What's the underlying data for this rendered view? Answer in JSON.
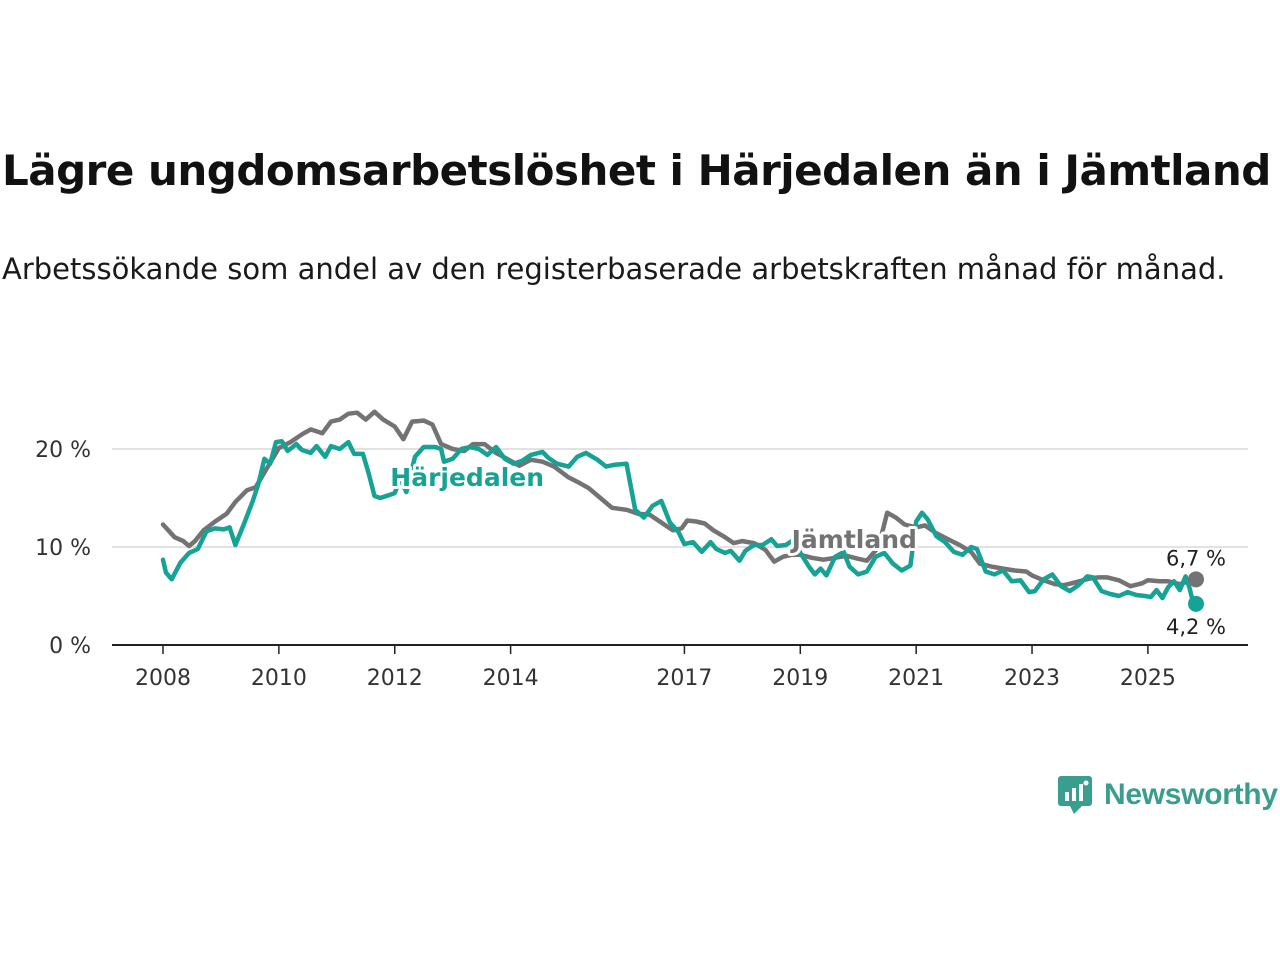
{
  "title": "Lägre ungdomsarbetslöshet i Härjedalen än i Jämtland",
  "subtitle": "Arbetssökande som andel av den registerbaserade arbetskraften månad för månad.",
  "brand": {
    "name": "Newsworthy",
    "icon": "newsworthy-logo-icon",
    "color": "#3a9e8f"
  },
  "colors": {
    "jamtland": "#737373",
    "harjedalen": "#16a295",
    "grid": "#d9d9d9",
    "axis": "#222222"
  },
  "chart_data": {
    "type": "line",
    "title": "Lägre ungdomsarbetslöshet i Härjedalen än i Jämtland",
    "xlabel": "",
    "ylabel": "",
    "x_range": [
      2008.0,
      2025.83
    ],
    "ylim": [
      0,
      24
    ],
    "y_ticks": [
      0,
      10,
      20
    ],
    "y_tick_labels": [
      "0 %",
      "10 %",
      "20 %"
    ],
    "x_ticks": [
      2008,
      2010,
      2012,
      2014,
      2017,
      2019,
      2021,
      2023,
      2025
    ],
    "x_tick_labels": [
      "2008",
      "2010",
      "2012",
      "2014",
      "2017",
      "2019",
      "2021",
      "2023",
      "2025"
    ],
    "grid": true,
    "series": [
      {
        "name": "Jämtland",
        "label": "Jämtland",
        "end_label": "6,7 %",
        "end_value": 6.7,
        "points": [
          [
            2008.0,
            12.3
          ],
          [
            2008.2,
            11.0
          ],
          [
            2008.35,
            10.6
          ],
          [
            2008.45,
            10.1
          ],
          [
            2008.55,
            10.6
          ],
          [
            2008.7,
            11.7
          ],
          [
            2008.9,
            12.6
          ],
          [
            2009.1,
            13.4
          ],
          [
            2009.25,
            14.6
          ],
          [
            2009.45,
            15.8
          ],
          [
            2009.6,
            16.1
          ],
          [
            2009.8,
            18.1
          ],
          [
            2010.0,
            20.1
          ],
          [
            2010.2,
            20.7
          ],
          [
            2010.4,
            21.5
          ],
          [
            2010.55,
            22.0
          ],
          [
            2010.75,
            21.6
          ],
          [
            2010.9,
            22.8
          ],
          [
            2011.05,
            23.0
          ],
          [
            2011.2,
            23.6
          ],
          [
            2011.35,
            23.7
          ],
          [
            2011.5,
            23.0
          ],
          [
            2011.65,
            23.8
          ],
          [
            2011.8,
            23.0
          ],
          [
            2012.0,
            22.3
          ],
          [
            2012.15,
            21.0
          ],
          [
            2012.3,
            22.8
          ],
          [
            2012.5,
            22.9
          ],
          [
            2012.65,
            22.5
          ],
          [
            2012.8,
            20.5
          ],
          [
            2013.0,
            20.0
          ],
          [
            2013.2,
            19.8
          ],
          [
            2013.35,
            20.5
          ],
          [
            2013.55,
            20.5
          ],
          [
            2013.75,
            19.6
          ],
          [
            2014.0,
            18.8
          ],
          [
            2014.15,
            18.3
          ],
          [
            2014.35,
            18.9
          ],
          [
            2014.55,
            18.7
          ],
          [
            2014.75,
            18.2
          ],
          [
            2015.0,
            17.1
          ],
          [
            2015.2,
            16.5
          ],
          [
            2015.35,
            16.0
          ],
          [
            2015.55,
            15.0
          ],
          [
            2015.75,
            14.0
          ],
          [
            2016.0,
            13.8
          ],
          [
            2016.2,
            13.4
          ],
          [
            2016.4,
            13.3
          ],
          [
            2016.6,
            12.5
          ],
          [
            2016.8,
            11.7
          ],
          [
            2016.95,
            11.9
          ],
          [
            2017.05,
            12.7
          ],
          [
            2017.2,
            12.6
          ],
          [
            2017.35,
            12.4
          ],
          [
            2017.5,
            11.7
          ],
          [
            2017.7,
            11.0
          ],
          [
            2017.85,
            10.4
          ],
          [
            2018.0,
            10.6
          ],
          [
            2018.2,
            10.4
          ],
          [
            2018.4,
            9.7
          ],
          [
            2018.55,
            8.5
          ],
          [
            2018.7,
            9.0
          ],
          [
            2018.85,
            9.2
          ],
          [
            2019.0,
            9.2
          ],
          [
            2019.2,
            8.9
          ],
          [
            2019.4,
            8.7
          ],
          [
            2019.6,
            8.9
          ],
          [
            2019.8,
            9.1
          ],
          [
            2020.0,
            8.8
          ],
          [
            2020.15,
            8.6
          ],
          [
            2020.35,
            10.0
          ],
          [
            2020.5,
            13.5
          ],
          [
            2020.65,
            13.0
          ],
          [
            2020.8,
            12.3
          ],
          [
            2021.0,
            12.0
          ],
          [
            2021.15,
            12.2
          ],
          [
            2021.35,
            11.4
          ],
          [
            2021.55,
            10.8
          ],
          [
            2021.75,
            10.2
          ],
          [
            2021.95,
            9.5
          ],
          [
            2022.1,
            8.3
          ],
          [
            2022.3,
            8.0
          ],
          [
            2022.5,
            7.8
          ],
          [
            2022.7,
            7.6
          ],
          [
            2022.9,
            7.5
          ],
          [
            2023.0,
            7.1
          ],
          [
            2023.2,
            6.6
          ],
          [
            2023.4,
            6.2
          ],
          [
            2023.55,
            6.1
          ],
          [
            2023.75,
            6.4
          ],
          [
            2024.0,
            6.8
          ],
          [
            2024.15,
            6.9
          ],
          [
            2024.3,
            6.9
          ],
          [
            2024.5,
            6.6
          ],
          [
            2024.7,
            6.0
          ],
          [
            2024.9,
            6.3
          ],
          [
            2025.0,
            6.6
          ],
          [
            2025.2,
            6.5
          ],
          [
            2025.35,
            6.5
          ],
          [
            2025.55,
            6.2
          ],
          [
            2025.7,
            6.5
          ],
          [
            2025.83,
            6.7
          ]
        ]
      },
      {
        "name": "Härjedalen",
        "label": "Härjedalen",
        "end_label": "4,2 %",
        "end_value": 4.2,
        "points": [
          [
            2008.0,
            8.7
          ],
          [
            2008.05,
            7.4
          ],
          [
            2008.15,
            6.7
          ],
          [
            2008.3,
            8.4
          ],
          [
            2008.45,
            9.4
          ],
          [
            2008.6,
            9.8
          ],
          [
            2008.75,
            11.6
          ],
          [
            2008.9,
            11.9
          ],
          [
            2009.05,
            11.8
          ],
          [
            2009.15,
            12.0
          ],
          [
            2009.25,
            10.2
          ],
          [
            2009.4,
            12.4
          ],
          [
            2009.55,
            14.7
          ],
          [
            2009.65,
            16.5
          ],
          [
            2009.75,
            19.0
          ],
          [
            2009.85,
            18.5
          ],
          [
            2009.95,
            20.7
          ],
          [
            2010.05,
            20.8
          ],
          [
            2010.15,
            19.8
          ],
          [
            2010.3,
            20.5
          ],
          [
            2010.4,
            19.9
          ],
          [
            2010.55,
            19.6
          ],
          [
            2010.65,
            20.3
          ],
          [
            2010.8,
            19.2
          ],
          [
            2010.9,
            20.3
          ],
          [
            2011.05,
            20.0
          ],
          [
            2011.2,
            20.7
          ],
          [
            2011.3,
            19.5
          ],
          [
            2011.45,
            19.5
          ],
          [
            2011.55,
            17.5
          ],
          [
            2011.65,
            15.2
          ],
          [
            2011.75,
            15.0
          ],
          [
            2011.9,
            15.3
          ],
          [
            2012.0,
            15.5
          ],
          [
            2012.1,
            17.0
          ],
          [
            2012.2,
            15.6
          ],
          [
            2012.35,
            19.2
          ],
          [
            2012.5,
            20.2
          ],
          [
            2012.7,
            20.2
          ],
          [
            2012.8,
            20.0
          ],
          [
            2012.85,
            18.7
          ],
          [
            2013.0,
            19.0
          ],
          [
            2013.15,
            20.0
          ],
          [
            2013.3,
            20.2
          ],
          [
            2013.45,
            20.0
          ],
          [
            2013.6,
            19.4
          ],
          [
            2013.75,
            20.2
          ],
          [
            2013.9,
            19.0
          ],
          [
            2014.05,
            18.5
          ],
          [
            2014.2,
            18.8
          ],
          [
            2014.35,
            19.4
          ],
          [
            2014.55,
            19.7
          ],
          [
            2014.65,
            19.1
          ],
          [
            2014.8,
            18.5
          ],
          [
            2015.0,
            18.2
          ],
          [
            2015.15,
            19.2
          ],
          [
            2015.3,
            19.6
          ],
          [
            2015.5,
            18.9
          ],
          [
            2015.65,
            18.2
          ],
          [
            2015.8,
            18.4
          ],
          [
            2016.0,
            18.5
          ],
          [
            2016.15,
            13.8
          ],
          [
            2016.3,
            13.0
          ],
          [
            2016.45,
            14.2
          ],
          [
            2016.6,
            14.7
          ],
          [
            2016.75,
            12.5
          ],
          [
            2016.9,
            11.5
          ],
          [
            2017.0,
            10.3
          ],
          [
            2017.15,
            10.5
          ],
          [
            2017.3,
            9.5
          ],
          [
            2017.45,
            10.5
          ],
          [
            2017.55,
            9.8
          ],
          [
            2017.7,
            9.4
          ],
          [
            2017.8,
            9.6
          ],
          [
            2017.95,
            8.6
          ],
          [
            2018.05,
            9.6
          ],
          [
            2018.2,
            10.2
          ],
          [
            2018.35,
            10.2
          ],
          [
            2018.5,
            10.8
          ],
          [
            2018.6,
            10.1
          ],
          [
            2018.75,
            10.2
          ],
          [
            2018.9,
            10.8
          ],
          [
            2019.0,
            9.4
          ],
          [
            2019.15,
            8.0
          ],
          [
            2019.25,
            7.2
          ],
          [
            2019.35,
            7.8
          ],
          [
            2019.45,
            7.1
          ],
          [
            2019.6,
            9.0
          ],
          [
            2019.75,
            9.5
          ],
          [
            2019.85,
            8.0
          ],
          [
            2020.0,
            7.2
          ],
          [
            2020.15,
            7.5
          ],
          [
            2020.3,
            9.0
          ],
          [
            2020.45,
            9.4
          ],
          [
            2020.6,
            8.3
          ],
          [
            2020.75,
            7.6
          ],
          [
            2020.9,
            8.1
          ],
          [
            2021.0,
            12.6
          ],
          [
            2021.1,
            13.5
          ],
          [
            2021.2,
            12.8
          ],
          [
            2021.35,
            11.1
          ],
          [
            2021.5,
            10.5
          ],
          [
            2021.65,
            9.5
          ],
          [
            2021.8,
            9.2
          ],
          [
            2021.95,
            10.0
          ],
          [
            2022.05,
            9.8
          ],
          [
            2022.2,
            7.5
          ],
          [
            2022.35,
            7.2
          ],
          [
            2022.5,
            7.6
          ],
          [
            2022.65,
            6.5
          ],
          [
            2022.8,
            6.6
          ],
          [
            2022.95,
            5.4
          ],
          [
            2023.05,
            5.5
          ],
          [
            2023.2,
            6.7
          ],
          [
            2023.35,
            7.2
          ],
          [
            2023.5,
            6.0
          ],
          [
            2023.65,
            5.5
          ],
          [
            2023.8,
            6.1
          ],
          [
            2023.95,
            7.0
          ],
          [
            2024.05,
            6.9
          ],
          [
            2024.2,
            5.5
          ],
          [
            2024.35,
            5.2
          ],
          [
            2024.5,
            5.0
          ],
          [
            2024.65,
            5.4
          ],
          [
            2024.8,
            5.1
          ],
          [
            2024.95,
            5.0
          ],
          [
            2025.05,
            4.9
          ],
          [
            2025.15,
            5.6
          ],
          [
            2025.25,
            4.8
          ],
          [
            2025.35,
            5.9
          ],
          [
            2025.45,
            6.5
          ],
          [
            2025.55,
            5.6
          ],
          [
            2025.65,
            7.0
          ],
          [
            2025.72,
            5.8
          ],
          [
            2025.78,
            4.3
          ],
          [
            2025.83,
            4.2
          ]
        ]
      }
    ]
  }
}
